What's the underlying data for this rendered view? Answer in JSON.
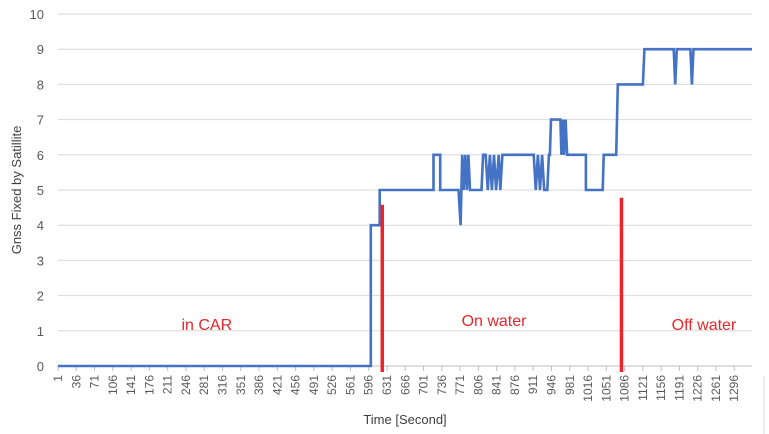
{
  "chart_data": {
    "type": "line",
    "title": "",
    "xlabel": "Time [Second]",
    "ylabel": "Gnss Fixed by Satillite",
    "ylim": [
      0,
      10
    ],
    "xlim": [
      1,
      1330
    ],
    "grid": true,
    "y_ticks": [
      "0",
      "1",
      "2",
      "3",
      "4",
      "5",
      "6",
      "7",
      "8",
      "9",
      "10"
    ],
    "x_ticks": [
      "1",
      "36",
      "71",
      "106",
      "141",
      "176",
      "211",
      "246",
      "281",
      "316",
      "351",
      "386",
      "421",
      "456",
      "491",
      "526",
      "561",
      "596",
      "631",
      "666",
      "701",
      "736",
      "771",
      "806",
      "841",
      "876",
      "911",
      "946",
      "981",
      "1016",
      "1051",
      "1086",
      "1121",
      "1156",
      "1191",
      "1226",
      "1261",
      "1296"
    ],
    "series": [
      {
        "color": "#4472C4",
        "points": [
          [
            1,
            0
          ],
          [
            600,
            0
          ],
          [
            600,
            4
          ],
          [
            617,
            4
          ],
          [
            617,
            5
          ],
          [
            720,
            5
          ],
          [
            720,
            6
          ],
          [
            733,
            6
          ],
          [
            733,
            5
          ],
          [
            768,
            5
          ],
          [
            772,
            4
          ],
          [
            775,
            6
          ],
          [
            778,
            5
          ],
          [
            781,
            6
          ],
          [
            784,
            5
          ],
          [
            787,
            6
          ],
          [
            790,
            5
          ],
          [
            812,
            5
          ],
          [
            815,
            6
          ],
          [
            820,
            6
          ],
          [
            824,
            5
          ],
          [
            828,
            6
          ],
          [
            832,
            5
          ],
          [
            836,
            6
          ],
          [
            840,
            5
          ],
          [
            845,
            6
          ],
          [
            848,
            5
          ],
          [
            852,
            6
          ],
          [
            880,
            6
          ],
          [
            895,
            6
          ],
          [
            912,
            6
          ],
          [
            916,
            5
          ],
          [
            920,
            6
          ],
          [
            924,
            5
          ],
          [
            928,
            6
          ],
          [
            932,
            5
          ],
          [
            938,
            5
          ],
          [
            941,
            6
          ],
          [
            943,
            6
          ],
          [
            945,
            7
          ],
          [
            963,
            7
          ],
          [
            965,
            6
          ],
          [
            968,
            7
          ],
          [
            970,
            6
          ],
          [
            973,
            7
          ],
          [
            976,
            6
          ],
          [
            1012,
            6
          ],
          [
            1012,
            5
          ],
          [
            1044,
            5
          ],
          [
            1046,
            6
          ],
          [
            1070,
            6
          ],
          [
            1073,
            8
          ],
          [
            1121,
            8
          ],
          [
            1124,
            9
          ],
          [
            1180,
            9
          ],
          [
            1183,
            8
          ],
          [
            1186,
            9
          ],
          [
            1212,
            9
          ],
          [
            1215,
            8
          ],
          [
            1218,
            9
          ],
          [
            1330,
            9
          ]
        ]
      }
    ],
    "markers": [
      {
        "x": 622,
        "y_from": 0,
        "y_to": 4.58,
        "color": "#E8262B"
      },
      {
        "x": 1080,
        "y_from": 0,
        "y_to": 4.78,
        "color": "#E8262B"
      }
    ],
    "annotations": [
      {
        "text": "in CAR",
        "x": 286,
        "y": 1.2,
        "color": "#E8262B"
      },
      {
        "text": "On water",
        "x": 836,
        "y": 1.3,
        "color": "#E8262B"
      },
      {
        "text": "Off water",
        "x": 1238,
        "y": 1.2,
        "color": "#E8262B"
      }
    ]
  }
}
